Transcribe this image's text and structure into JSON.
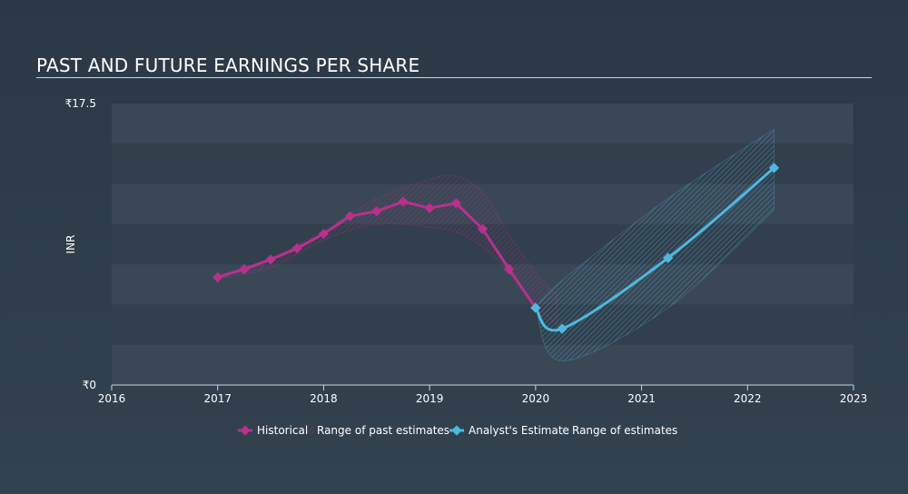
{
  "title": "PAST AND FUTURE EARNINGS PER SHARE",
  "colors": {
    "historical": "#b8318d",
    "estimate": "#4fb8e0",
    "band_light": "#3a4856",
    "band_dark": "#323f4c",
    "axis": "#cfd6dc"
  },
  "chart_data": {
    "type": "line",
    "title": "PAST AND FUTURE EARNINGS PER SHARE",
    "xlabel": "",
    "ylabel": "INR",
    "xlim": [
      2016.0,
      2023.0
    ],
    "ylim": [
      0,
      17.5
    ],
    "x_ticks": [
      "2016",
      "2017",
      "2018",
      "2019",
      "2020",
      "2021",
      "2022",
      "2023"
    ],
    "y_ticks": [
      "₹0",
      "₹17.5"
    ],
    "grid": false,
    "legend_position": "bottom-center",
    "series": [
      {
        "name": "Historical",
        "x": [
          2017.0,
          2017.25,
          2017.5,
          2017.75,
          2018.0,
          2018.25,
          2018.5,
          2018.75,
          2019.0,
          2019.25,
          2019.5,
          2019.75,
          2020.0
        ],
        "y": [
          6.7,
          7.2,
          7.8,
          8.5,
          9.4,
          10.5,
          10.8,
          11.4,
          11.0,
          11.3,
          9.7,
          7.2,
          4.8
        ]
      },
      {
        "name": "Analyst's Estimate",
        "x": [
          2020.0,
          2020.25,
          2021.25,
          2022.25
        ],
        "y": [
          4.8,
          3.5,
          7.9,
          13.5
        ]
      }
    ],
    "ranges": [
      {
        "name": "Range of past estimates",
        "x": [
          2017.0,
          2017.5,
          2018.0,
          2018.5,
          2019.0,
          2019.25,
          2019.5,
          2019.75,
          2020.0,
          2020.2
        ],
        "low": [
          6.6,
          7.3,
          9.0,
          10.0,
          9.8,
          9.5,
          8.6,
          7.0,
          5.0,
          3.8
        ],
        "high": [
          6.8,
          7.9,
          9.6,
          11.6,
          12.8,
          13.0,
          12.0,
          9.4,
          7.0,
          5.6
        ]
      },
      {
        "name": "Range of estimates",
        "x": [
          2020.0,
          2020.25,
          2021.25,
          2022.25
        ],
        "low": [
          4.8,
          1.5,
          4.8,
          10.9
        ],
        "high": [
          4.8,
          6.5,
          11.6,
          15.9
        ]
      }
    ],
    "legend": [
      "Historical",
      "Range of past estimates",
      "Analyst's Estimate",
      "Range of estimates"
    ]
  }
}
